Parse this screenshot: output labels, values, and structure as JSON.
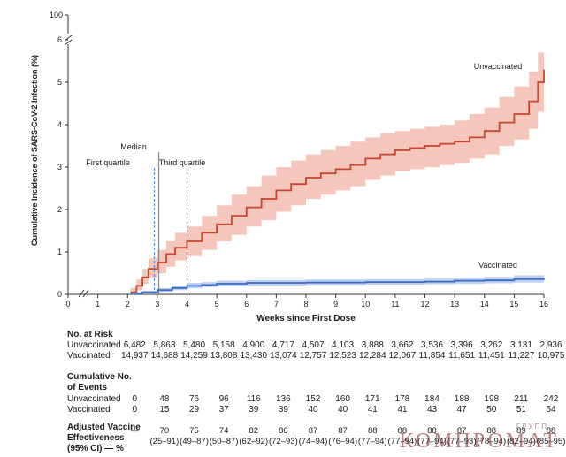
{
  "chart_data": {
    "type": "line",
    "title": "",
    "xlabel": "Weeks since First Dose",
    "ylabel": "Cumulative Incidence of SARS-CoV-2 Infection (%)",
    "xlim": [
      0,
      16
    ],
    "ylim": [
      0,
      6
    ],
    "y_break_top": 100,
    "x_ticks": [
      0,
      1,
      2,
      3,
      4,
      5,
      6,
      7,
      8,
      9,
      10,
      11,
      12,
      13,
      14,
      15,
      16
    ],
    "y_ticks": [
      0,
      1,
      2,
      3,
      4,
      5,
      6
    ],
    "vertical_lines": [
      {
        "label": "First quartile",
        "x": 2.9,
        "style": "dashed"
      },
      {
        "label": "Median",
        "x": 3.05,
        "style": "solid"
      },
      {
        "label": "Third quartile",
        "x": 4.0,
        "style": "dashed"
      }
    ],
    "series": [
      {
        "name": "Unvaccinated",
        "color": "#c8462a",
        "band_color": "#f1b3a6",
        "x": [
          2.1,
          2.3,
          2.5,
          2.7,
          3.0,
          3.3,
          3.6,
          4.0,
          4.5,
          5.0,
          5.5,
          6.0,
          6.5,
          7.0,
          7.5,
          8.0,
          8.5,
          9.0,
          9.5,
          10.0,
          10.5,
          11.0,
          11.5,
          12.0,
          12.5,
          13.0,
          13.5,
          14.0,
          14.5,
          15.0,
          15.5,
          15.8,
          16.0
        ],
        "y": [
          0.05,
          0.2,
          0.4,
          0.6,
          0.75,
          0.95,
          1.1,
          1.25,
          1.45,
          1.65,
          1.85,
          2.05,
          2.25,
          2.45,
          2.6,
          2.75,
          2.85,
          2.95,
          3.05,
          3.2,
          3.3,
          3.4,
          3.45,
          3.5,
          3.55,
          3.6,
          3.7,
          3.85,
          4.05,
          4.25,
          4.55,
          5.0,
          5.3
        ],
        "lower": [
          0.0,
          0.1,
          0.25,
          0.4,
          0.5,
          0.65,
          0.8,
          0.9,
          1.05,
          1.25,
          1.4,
          1.6,
          1.75,
          1.95,
          2.1,
          2.25,
          2.35,
          2.45,
          2.55,
          2.7,
          2.8,
          2.9,
          2.95,
          3.0,
          3.05,
          3.1,
          3.2,
          3.3,
          3.5,
          3.65,
          3.9,
          4.3,
          4.6
        ],
        "upper": [
          0.15,
          0.35,
          0.6,
          0.85,
          1.05,
          1.25,
          1.45,
          1.6,
          1.85,
          2.1,
          2.35,
          2.55,
          2.8,
          3.0,
          3.15,
          3.3,
          3.4,
          3.5,
          3.6,
          3.7,
          3.8,
          3.85,
          3.9,
          3.95,
          4.0,
          4.1,
          4.25,
          4.4,
          4.65,
          4.9,
          5.25,
          5.7,
          5.95
        ]
      },
      {
        "name": "Vaccinated",
        "color": "#3b6cc8",
        "band_color": "#a9c1ea",
        "x": [
          2.1,
          2.5,
          3.0,
          3.5,
          4.0,
          4.5,
          5.0,
          6.0,
          7.0,
          8.0,
          9.0,
          10.0,
          11.0,
          12.0,
          13.0,
          14.0,
          15.0,
          16.0
        ],
        "y": [
          0.02,
          0.05,
          0.1,
          0.15,
          0.2,
          0.22,
          0.25,
          0.27,
          0.27,
          0.28,
          0.28,
          0.29,
          0.29,
          0.3,
          0.32,
          0.33,
          0.36,
          0.38
        ],
        "lower": [
          0.0,
          0.02,
          0.06,
          0.1,
          0.14,
          0.17,
          0.19,
          0.21,
          0.21,
          0.22,
          0.22,
          0.23,
          0.23,
          0.24,
          0.25,
          0.26,
          0.28,
          0.29
        ],
        "upper": [
          0.05,
          0.09,
          0.15,
          0.21,
          0.27,
          0.29,
          0.32,
          0.34,
          0.34,
          0.35,
          0.35,
          0.36,
          0.36,
          0.37,
          0.39,
          0.41,
          0.45,
          0.48
        ]
      }
    ]
  },
  "table": {
    "weeks": [
      2,
      3,
      4,
      5,
      6,
      7,
      8,
      9,
      10,
      11,
      12,
      13,
      14,
      15,
      16
    ],
    "at_risk_header": "No. at Risk",
    "events_header_1": "Cumulative No.",
    "events_header_2": "of Events",
    "ave_header_1": "Adjusted Vaccine",
    "ave_header_2": "Effectiveness",
    "ave_header_3": "(95% CI) — %",
    "row_unvaccinated": "Unvaccinated",
    "row_vaccinated": "Vaccinated",
    "at_risk_unvaccinated": [
      "6,482",
      "5,863",
      "5,480",
      "5,158",
      "4,900",
      "4,717",
      "4,507",
      "4,103",
      "3,888",
      "3,662",
      "3,536",
      "3,396",
      "3,262",
      "3,131",
      "2,936"
    ],
    "at_risk_vaccinated": [
      "14,937",
      "14,688",
      "14,259",
      "13,808",
      "13,430",
      "13,074",
      "12,757",
      "12,523",
      "12,284",
      "12,067",
      "11,854",
      "11,651",
      "11,451",
      "11,227",
      "10,975"
    ],
    "events_unvaccinated": [
      "0",
      "48",
      "76",
      "96",
      "116",
      "136",
      "152",
      "160",
      "171",
      "178",
      "184",
      "188",
      "198",
      "211",
      "242"
    ],
    "events_vaccinated": [
      "0",
      "15",
      "29",
      "37",
      "39",
      "39",
      "40",
      "40",
      "41",
      "41",
      "43",
      "47",
      "50",
      "51",
      "54"
    ],
    "ave_values": [
      "—",
      "70",
      "75",
      "74",
      "82",
      "86",
      "87",
      "87",
      "88",
      "88",
      "88",
      "87",
      "88",
      "89",
      "88"
    ],
    "ave_ci": [
      "",
      "(25–91)",
      "(49–87)",
      "(50–87)",
      "(62–92)",
      "(72–93)",
      "(74–94)",
      "(76–94)",
      "(77–94)",
      "(77–94)",
      "(77–94)",
      "(77–93)",
      "(78–94)",
      "(82–94)",
      "(85–95)"
    ]
  },
  "watermark": "КОМПРОМАТ",
  "watermark_sub": "ГРУПП"
}
